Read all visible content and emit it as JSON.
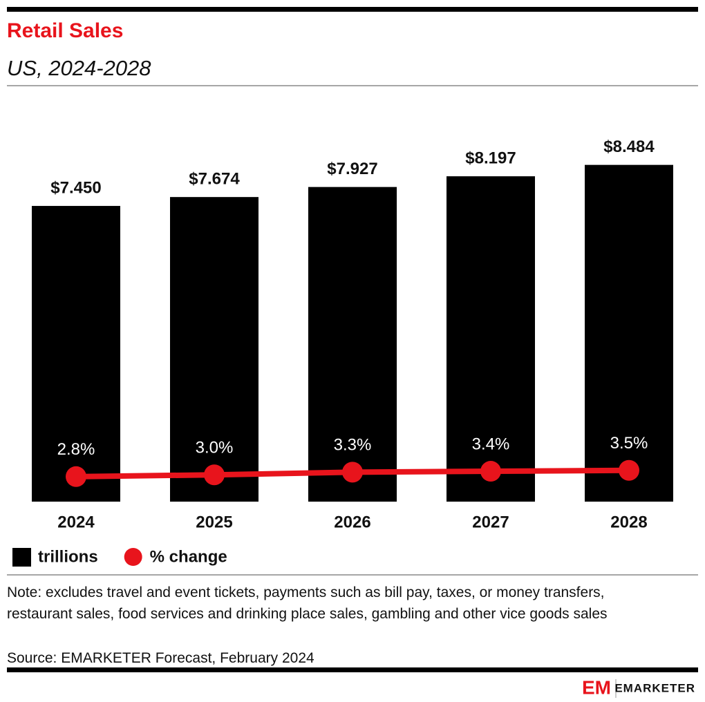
{
  "chart_data": {
    "type": "bar",
    "title": "Retail Sales",
    "subtitle": "US, 2024-2028",
    "categories": [
      "2024",
      "2025",
      "2026",
      "2027",
      "2028"
    ],
    "series": [
      {
        "name": "trillions",
        "type": "bar",
        "color": "#000000",
        "values": [
          7.45,
          7.674,
          7.927,
          8.197,
          8.484
        ],
        "value_labels": [
          "$7.450",
          "$7.674",
          "$7.927",
          "$8.197",
          "$8.484"
        ]
      },
      {
        "name": "% change",
        "type": "line",
        "axis": "y2",
        "color": "#e8141c",
        "values": [
          2.8,
          3.0,
          3.3,
          3.4,
          3.5
        ],
        "value_labels": [
          "2.8%",
          "3.0%",
          "3.3%",
          "3.4%",
          "3.5%"
        ]
      }
    ],
    "ylim": [
      0,
      9
    ],
    "y2lim": [
      0,
      40
    ],
    "grid": false
  },
  "note": "Note: excludes travel and event tickets, payments such as bill pay, taxes, or money transfers, restaurant sales, food services and drinking place sales, gambling and other vice goods sales",
  "source": "Source: EMARKETER Forecast, February 2024",
  "logo": {
    "mark": "EM",
    "name": "EMARKETER"
  }
}
